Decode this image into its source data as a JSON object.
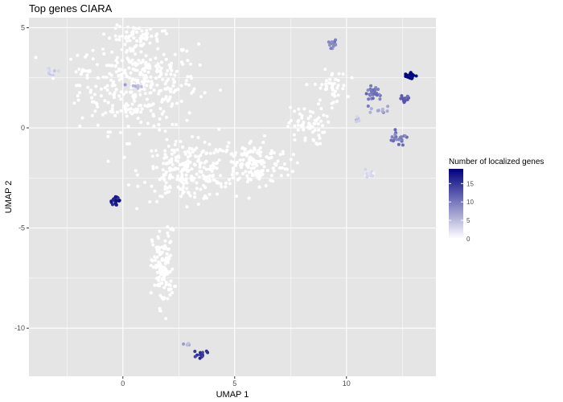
{
  "chart_data": {
    "type": "scatter",
    "title": "Top genes CIARA",
    "xlabel": "UMAP 1",
    "ylabel": "UMAP 2",
    "xlim": [
      -4.2,
      14
    ],
    "ylim": [
      -12.4,
      5.5
    ],
    "xticks": [
      0,
      5,
      10
    ],
    "yticks": [
      5,
      0,
      -5,
      -10
    ],
    "xtick_labels": [
      "0",
      "5",
      "10"
    ],
    "ytick_labels": [
      "5",
      "0",
      "-5",
      "-10"
    ],
    "grid": true,
    "panel_background": "#e5e5e5",
    "grid_color": "#ffffff",
    "legend": {
      "title": "Number of localized genes",
      "placement": "right",
      "min": 0,
      "max": 19,
      "ticks": [
        15,
        10,
        5,
        0
      ],
      "tick_labels": [
        "15",
        "10",
        "5",
        "0"
      ],
      "color_low": "#ffffff",
      "color_high": "#00007f"
    },
    "clusters": [
      {
        "cx": 0.7,
        "cy": 2.2,
        "sx": 2.2,
        "sy": 1.9,
        "n": 360,
        "value": 0
      },
      {
        "cx": 2.8,
        "cy": -2.2,
        "sx": 1.6,
        "sy": 1.2,
        "n": 230,
        "value": 0
      },
      {
        "cx": 5.8,
        "cy": -1.8,
        "sx": 1.4,
        "sy": 1.0,
        "n": 170,
        "value": 0
      },
      {
        "cx": 8.2,
        "cy": 0.1,
        "sx": 0.7,
        "sy": 0.8,
        "n": 60,
        "value": 0
      },
      {
        "cx": 1.8,
        "cy": -7.0,
        "sx": 0.4,
        "sy": 1.6,
        "n": 130,
        "value": 0
      },
      {
        "cx": 9.3,
        "cy": 2.0,
        "sx": 0.6,
        "sy": 0.7,
        "n": 45,
        "value": 0
      },
      {
        "cx": 0.6,
        "cy": 4.6,
        "sx": 0.9,
        "sy": 0.4,
        "n": 45,
        "value": 0
      },
      {
        "cx": -1.6,
        "cy": 2.8,
        "sx": 0.5,
        "sy": 0.15,
        "n": 10,
        "value": 0
      },
      {
        "cx": -3.2,
        "cy": 2.8,
        "sx": 0.22,
        "sy": 0.18,
        "n": 22,
        "value": 3
      },
      {
        "cx": 0.6,
        "cy": 2.1,
        "sx": 0.25,
        "sy": 0.1,
        "n": 8,
        "value": 6
      },
      {
        "cx": 9.4,
        "cy": 4.2,
        "sx": 0.18,
        "sy": 0.18,
        "n": 14,
        "value": 9
      },
      {
        "cx": 11.2,
        "cy": 1.7,
        "sx": 0.3,
        "sy": 0.35,
        "n": 34,
        "value": 10
      },
      {
        "cx": 12.3,
        "cy": -0.5,
        "sx": 0.35,
        "sy": 0.25,
        "n": 22,
        "value": 10
      },
      {
        "cx": 12.6,
        "cy": 1.4,
        "sx": 0.2,
        "sy": 0.15,
        "n": 18,
        "value": 12
      },
      {
        "cx": 12.9,
        "cy": 2.6,
        "sx": 0.18,
        "sy": 0.15,
        "n": 28,
        "value": 19
      },
      {
        "cx": 11.0,
        "cy": -2.3,
        "sx": 0.22,
        "sy": 0.16,
        "n": 28,
        "value": 2
      },
      {
        "cx": -0.3,
        "cy": -3.6,
        "sx": 0.14,
        "sy": 0.16,
        "n": 22,
        "value": 17
      },
      {
        "cx": 3.5,
        "cy": -11.3,
        "sx": 0.22,
        "sy": 0.15,
        "n": 16,
        "value": 15
      },
      {
        "cx": 2.9,
        "cy": -10.8,
        "sx": 0.15,
        "sy": 0.07,
        "n": 6,
        "value": 6
      },
      {
        "cx": 11.5,
        "cy": 0.9,
        "sx": 0.3,
        "sy": 0.15,
        "n": 10,
        "value": 7
      },
      {
        "cx": 10.5,
        "cy": 0.4,
        "sx": 0.2,
        "sy": 0.2,
        "n": 5,
        "value": 4
      }
    ]
  }
}
